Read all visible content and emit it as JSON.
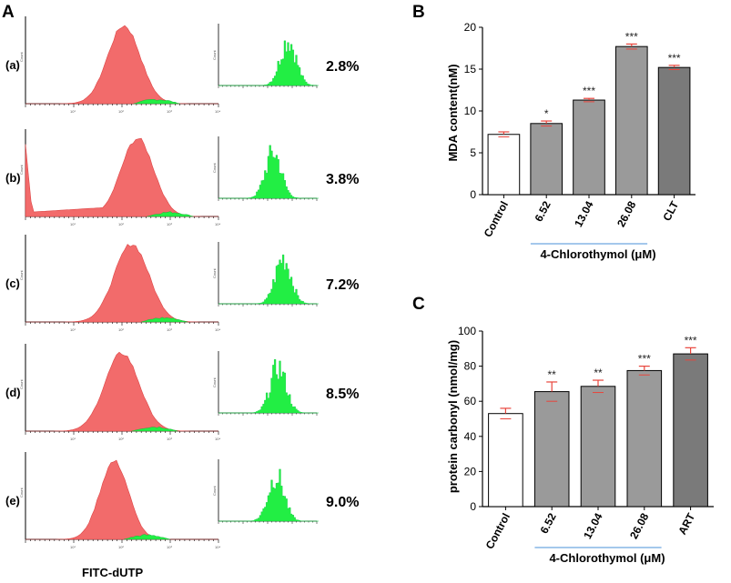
{
  "panel_a": {
    "letter": "A",
    "x_label": "FITC-dUTP",
    "y_label_small": "Count",
    "tick_exponents": [
      "10¹",
      "10²",
      "10³",
      "10⁴"
    ],
    "colors": {
      "red_fill": "#f26b6b",
      "green_fill": "#22ee44"
    },
    "rows": [
      {
        "label": "(a)",
        "percent": "2.8%",
        "red_peak": 0.51,
        "red_width": 0.085,
        "green_peak": 0.7
      },
      {
        "label": "(b)",
        "percent": "3.8%",
        "red_peak": 0.58,
        "red_width": 0.085,
        "green_peak": 0.55
      },
      {
        "label": "(c)",
        "percent": "7.2%",
        "red_peak": 0.55,
        "red_width": 0.09,
        "green_peak": 0.65
      },
      {
        "label": "(d)",
        "percent": "8.5%",
        "red_peak": 0.5,
        "red_width": 0.09,
        "green_peak": 0.6
      },
      {
        "label": "(e)",
        "percent": "9.0%",
        "red_peak": 0.46,
        "red_width": 0.075,
        "green_peak": 0.58
      }
    ]
  },
  "chart_data": [
    {
      "type": "bar",
      "panel": "B",
      "title": "",
      "ylabel": "MDA content(nM)",
      "xlabel": "4-Chlorothymol (μM)",
      "categories": [
        "Control",
        "6.52",
        "13.04",
        "26.08",
        "CLT"
      ],
      "values": [
        7.2,
        8.5,
        11.3,
        17.7,
        15.2
      ],
      "errors": [
        0.3,
        0.3,
        0.2,
        0.3,
        0.25
      ],
      "significance": [
        "",
        "*",
        "***",
        "***",
        "***"
      ],
      "ylim": [
        0,
        20
      ],
      "yticks": [
        0,
        5,
        10,
        15,
        20
      ],
      "bar_colors": [
        "#ffffff",
        "#9a9a9a",
        "#9a9a9a",
        "#9a9a9a",
        "#7a7a7a"
      ]
    },
    {
      "type": "bar",
      "panel": "C",
      "title": "",
      "ylabel": "protein carbonyl (nmol/mg)",
      "xlabel": "4-Chlorothymol (μM)",
      "categories": [
        "Control",
        "6.52",
        "13.04",
        "26.08",
        "ART"
      ],
      "values": [
        53,
        65.5,
        68.5,
        77.5,
        87
      ],
      "errors": [
        3,
        5.5,
        3.5,
        2.5,
        3.5
      ],
      "significance": [
        "",
        "**",
        "**",
        "***",
        "***"
      ],
      "ylim": [
        0,
        100
      ],
      "yticks": [
        0,
        20,
        40,
        60,
        80,
        100
      ],
      "bar_colors": [
        "#ffffff",
        "#9a9a9a",
        "#9a9a9a",
        "#9a9a9a",
        "#7a7a7a"
      ]
    }
  ],
  "colors": {
    "error_bar": "#e8453c",
    "bracket_line": "#4a90d9"
  }
}
